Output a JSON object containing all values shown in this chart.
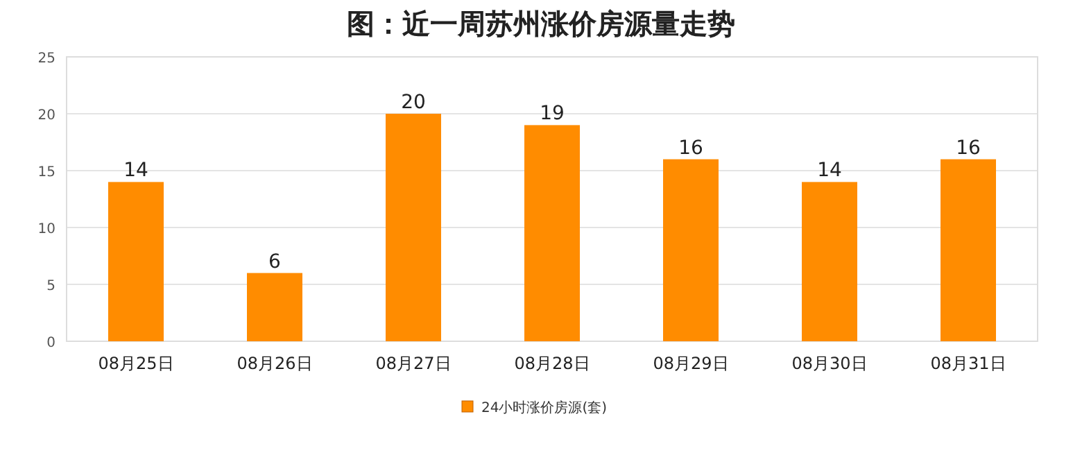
{
  "chart_data": {
    "type": "bar",
    "title": "图：近一周苏州涨价房源量走势",
    "categories": [
      "08月25日",
      "08月26日",
      "08月27日",
      "08月28日",
      "08月29日",
      "08月30日",
      "08月31日"
    ],
    "series": [
      {
        "name": "24小时涨价房源(套)",
        "color": "#ff8c00",
        "values": [
          14,
          6,
          20,
          19,
          16,
          14,
          16
        ]
      }
    ],
    "ylim": [
      0,
      25
    ],
    "yticks": [
      0,
      5,
      10,
      15,
      20,
      25
    ],
    "grid": "y",
    "legend": "bottom",
    "data_labels": true
  }
}
